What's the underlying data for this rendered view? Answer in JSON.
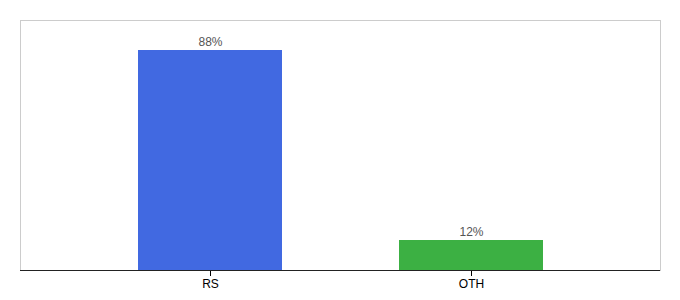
{
  "chart_data": {
    "type": "bar",
    "categories": [
      "RS",
      "OTH"
    ],
    "values": [
      88,
      12
    ],
    "colors": [
      "#4169e1",
      "#3cb043"
    ],
    "value_labels": [
      "88%",
      "12%"
    ],
    "data_labels": true,
    "ylim": [
      0,
      100
    ],
    "tick_labels": "x"
  }
}
